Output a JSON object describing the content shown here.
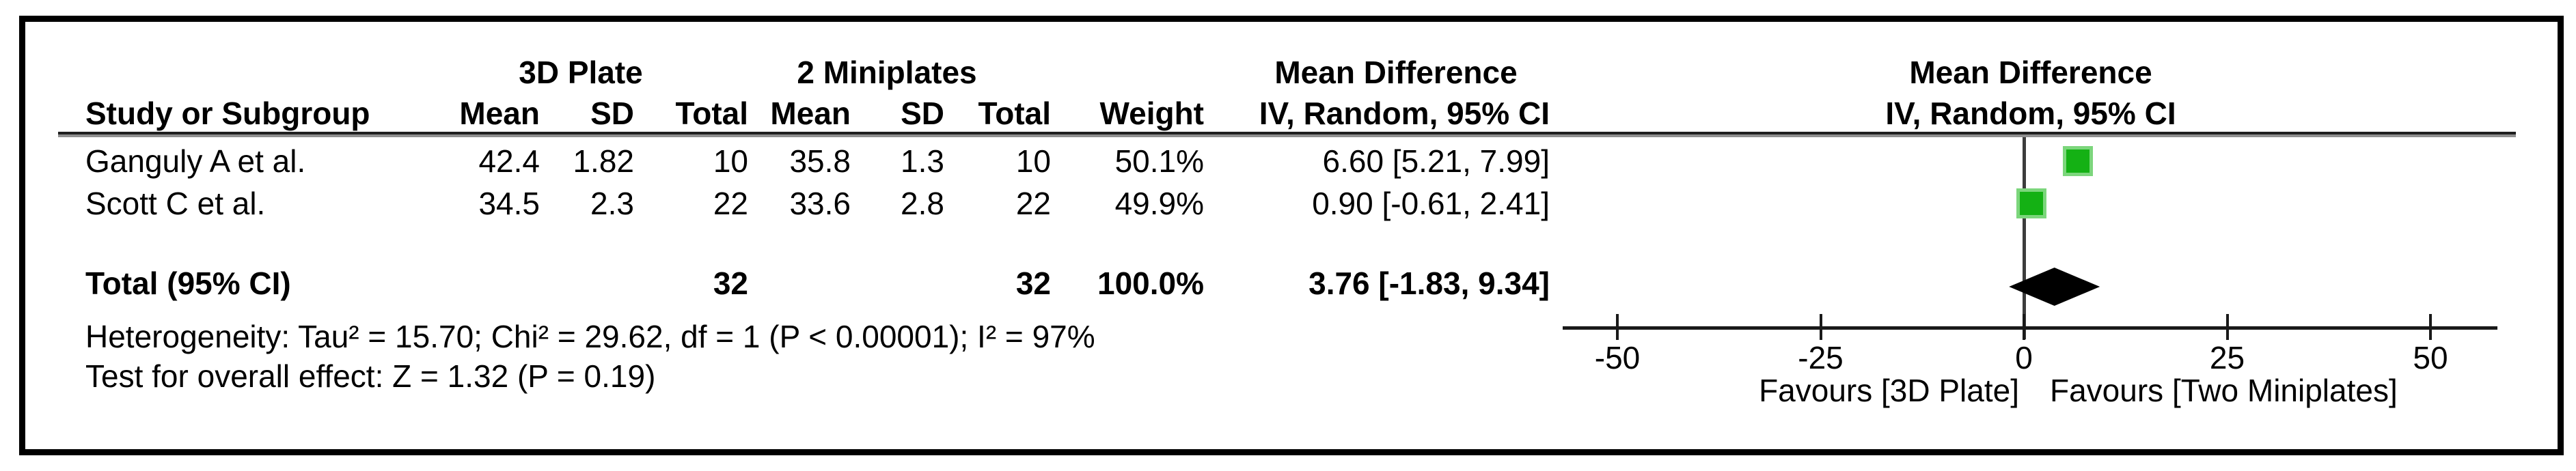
{
  "table": {
    "group1_header": "3D Plate",
    "group2_header": "2 Miniplates",
    "md_header_line1": "Mean Difference",
    "md_header_line2": "IV, Random, 95% CI",
    "columns": {
      "study": "Study or Subgroup",
      "mean": "Mean",
      "sd": "SD",
      "total": "Total",
      "weight": "Weight",
      "ci": "IV, Random, 95% CI"
    },
    "rows": [
      {
        "study": "Ganguly A et al.",
        "mean1": "42.4",
        "sd1": "1.82",
        "total1": "10",
        "mean2": "35.8",
        "sd2": "1.3",
        "total2": "10",
        "weight": "50.1%",
        "ci": "6.60 [5.21, 7.99]"
      },
      {
        "study": "Scott C et al.",
        "mean1": "34.5",
        "sd1": "2.3",
        "total1": "22",
        "mean2": "33.6",
        "sd2": "2.8",
        "total2": "22",
        "weight": "49.9%",
        "ci": "0.90 [-0.61, 2.41]"
      }
    ],
    "total_row": {
      "label": "Total (95% CI)",
      "total1": "32",
      "total2": "32",
      "weight": "100.0%",
      "ci": "3.76 [-1.83, 9.34]"
    },
    "heterogeneity": "Heterogeneity: Tau² = 15.70; Chi² = 29.62, df = 1 (P < 0.00001); I² = 97%",
    "overall_effect": "Test for overall effect: Z = 1.32 (P = 0.19)"
  },
  "plot_header": {
    "line1": "Mean Difference",
    "line2": "IV, Random, 95% CI"
  },
  "chart_data": {
    "type": "scatter",
    "variant": "forest-plot",
    "title": "Mean Difference IV, Random, 95% CI",
    "x_axis": {
      "ticks": [
        -50,
        -25,
        0,
        25,
        50
      ],
      "min": -57,
      "max": 58,
      "zero_reference": 0
    },
    "favours_left": "Favours [3D Plate]",
    "favours_right": "Favours [Two Miniplates]",
    "studies": [
      {
        "name": "Ganguly A et al.",
        "md": 6.6,
        "ci_low": 5.21,
        "ci_high": 7.99,
        "weight_pct": 50.1
      },
      {
        "name": "Scott C et al.",
        "md": 0.9,
        "ci_low": -0.61,
        "ci_high": 2.41,
        "weight_pct": 49.9
      }
    ],
    "total": {
      "name": "Total (95% CI)",
      "md": 3.76,
      "ci_low": -1.83,
      "ci_high": 9.34,
      "weight_pct": 100.0
    },
    "marker_color": "#14B114",
    "marker_edge_color": "#7CD67C",
    "diamond_color": "#000000",
    "legend_position": "none",
    "grid": false
  }
}
